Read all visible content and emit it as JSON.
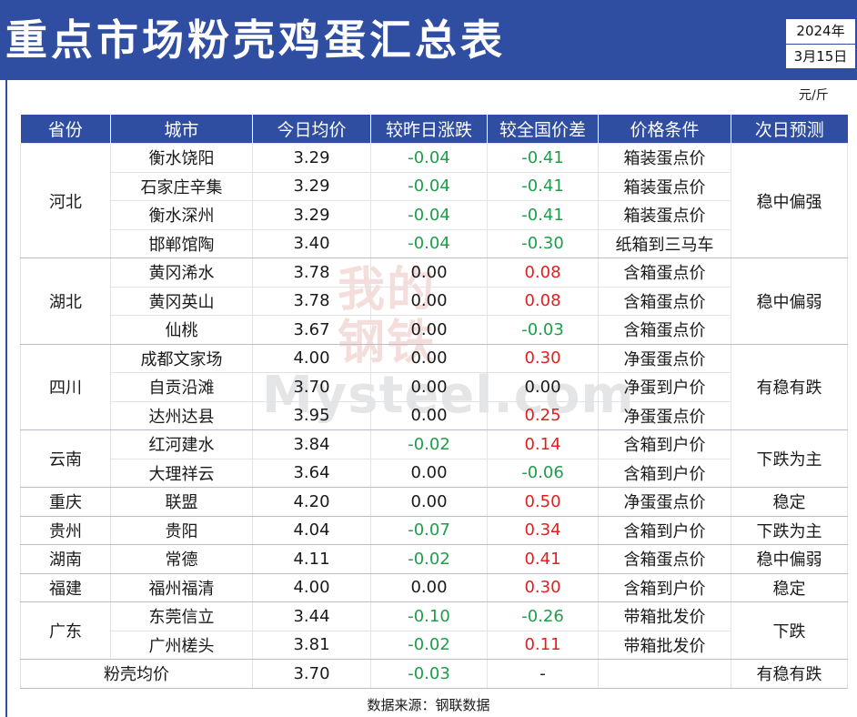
{
  "title": "重点市场粉壳鸡蛋汇总表",
  "date": {
    "year": "2024年",
    "day": "3月15日"
  },
  "unit": "元/斤",
  "watermark": {
    "line1": "我的",
    "line2": "钢铁",
    "text": "Mysteel.com"
  },
  "columns": [
    "省份",
    "城市",
    "今日均价",
    "较昨日涨跌",
    "较全国价差",
    "价格条件",
    "次日预测"
  ],
  "groups": [
    {
      "province": "河北",
      "forecast": "稳中偏强",
      "rows": [
        {
          "city": "衡水饶阳",
          "price": "3.29",
          "change": "-0.04",
          "diff": "-0.41",
          "condition": "箱装蛋点价"
        },
        {
          "city": "石家庄辛集",
          "price": "3.29",
          "change": "-0.04",
          "diff": "-0.41",
          "condition": "箱装蛋点价"
        },
        {
          "city": "衡水深州",
          "price": "3.29",
          "change": "-0.04",
          "diff": "-0.41",
          "condition": "箱装蛋点价"
        },
        {
          "city": "邯郸馆陶",
          "price": "3.40",
          "change": "-0.04",
          "diff": "-0.30",
          "condition": "纸箱到三马车"
        }
      ]
    },
    {
      "province": "湖北",
      "forecast": "稳中偏弱",
      "rows": [
        {
          "city": "黄冈浠水",
          "price": "3.78",
          "change": "0.00",
          "diff": "0.08",
          "condition": "含箱蛋点价"
        },
        {
          "city": "黄冈英山",
          "price": "3.78",
          "change": "0.00",
          "diff": "0.08",
          "condition": "含箱蛋点价"
        },
        {
          "city": "仙桃",
          "price": "3.67",
          "change": "0.00",
          "diff": "-0.03",
          "condition": "含箱蛋点价"
        }
      ]
    },
    {
      "province": "四川",
      "forecast": "有稳有跌",
      "rows": [
        {
          "city": "成都文家场",
          "price": "4.00",
          "change": "0.00",
          "diff": "0.30",
          "condition": "净蛋蛋点价"
        },
        {
          "city": "自贡沿滩",
          "price": "3.70",
          "change": "0.00",
          "diff": "0.00",
          "condition": "净蛋到户价"
        },
        {
          "city": "达州达县",
          "price": "3.95",
          "change": "0.00",
          "diff": "0.25",
          "condition": "净蛋蛋点价"
        }
      ]
    },
    {
      "province": "云南",
      "forecast": "下跌为主",
      "rows": [
        {
          "city": "红河建水",
          "price": "3.84",
          "change": "-0.02",
          "diff": "0.14",
          "condition": "含箱到户价"
        },
        {
          "city": "大理祥云",
          "price": "3.64",
          "change": "0.00",
          "diff": "-0.06",
          "condition": "含箱到户价"
        }
      ]
    },
    {
      "province": "重庆",
      "forecast": "稳定",
      "rows": [
        {
          "city": "联盟",
          "price": "4.20",
          "change": "0.00",
          "diff": "0.50",
          "condition": "净蛋蛋点价"
        }
      ]
    },
    {
      "province": "贵州",
      "forecast": "下跌为主",
      "rows": [
        {
          "city": "贵阳",
          "price": "4.04",
          "change": "-0.07",
          "diff": "0.34",
          "condition": "含箱到户价"
        }
      ]
    },
    {
      "province": "湖南",
      "forecast": "稳中偏弱",
      "rows": [
        {
          "city": "常德",
          "price": "4.11",
          "change": "-0.02",
          "diff": "0.41",
          "condition": "含箱蛋点价"
        }
      ]
    },
    {
      "province": "福建",
      "forecast": "稳定",
      "rows": [
        {
          "city": "福州福清",
          "price": "4.00",
          "change": "0.00",
          "diff": "0.30",
          "condition": "含箱到户价"
        }
      ]
    },
    {
      "province": "广东",
      "forecast": "下跌",
      "rows": [
        {
          "city": "东莞信立",
          "price": "3.44",
          "change": "-0.10",
          "diff": "-0.26",
          "condition": "带箱批发价"
        },
        {
          "city": "广州槎头",
          "price": "3.81",
          "change": "-0.02",
          "diff": "0.11",
          "condition": "带箱批发价"
        }
      ]
    }
  ],
  "average": {
    "label": "粉壳均价",
    "price": "3.70",
    "change": "-0.03",
    "diff": "-",
    "condition": "",
    "forecast": "有稳有跌"
  },
  "source": "数据来源：钢联数据",
  "colors": {
    "header_bg": "#2f4ea1",
    "negative": "#1e9e4a",
    "positive": "#e02020"
  }
}
